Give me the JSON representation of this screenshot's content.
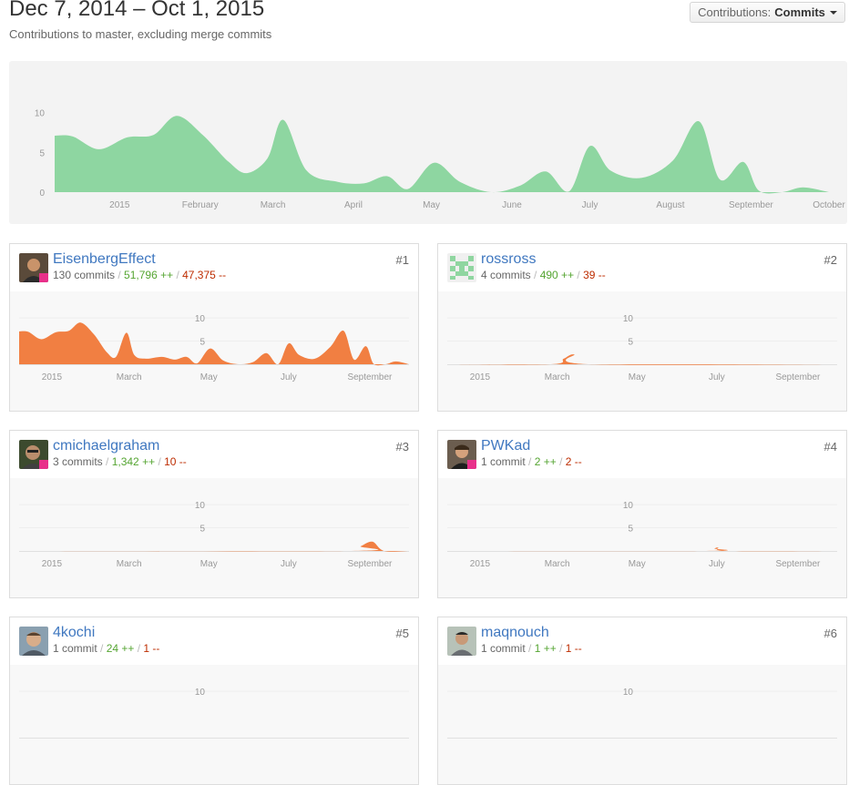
{
  "header": {
    "date_range": "Dec 7, 2014 – Oct 1, 2015",
    "subtitle": "Contributions to master, excluding merge commits",
    "contributions_label": "Contributions:",
    "contributions_value": "Commits"
  },
  "colors": {
    "main_fill": "#8ed6a1",
    "contributor_fill": "#f17f42",
    "link": "#4078c0",
    "additions": "#55a532",
    "deletions": "#bd2c00"
  },
  "chart_data": [
    {
      "type": "area",
      "x_start": "2014-12-07",
      "x_end": "2015-10-01",
      "x": [
        "2014-12-07",
        "2014-12-14",
        "2014-12-24",
        "2015-01-04",
        "2015-01-14",
        "2015-01-23",
        "2015-02-02",
        "2015-02-12",
        "2015-02-19",
        "2015-02-27",
        "2015-03-05",
        "2015-03-14",
        "2015-03-26",
        "2015-04-05",
        "2015-04-14",
        "2015-04-22",
        "2015-05-02",
        "2015-05-12",
        "2015-05-24",
        "2015-06-04",
        "2015-06-14",
        "2015-06-23",
        "2015-07-01",
        "2015-07-09",
        "2015-07-21",
        "2015-08-02",
        "2015-08-12",
        "2015-08-20",
        "2015-08-29",
        "2015-09-04",
        "2015-09-13",
        "2015-09-21",
        "2015-10-01"
      ],
      "values": [
        7.1,
        7.0,
        5.4,
        6.9,
        7.2,
        9.6,
        7.2,
        3.8,
        2.4,
        4.3,
        9.1,
        2.7,
        1.3,
        1.1,
        2.0,
        0.4,
        3.7,
        1.3,
        0.0,
        0.8,
        2.6,
        0.1,
        5.8,
        2.7,
        1.8,
        4.0,
        8.9,
        1.6,
        3.8,
        0.2,
        0.0,
        0.6,
        0.0
      ],
      "x_tick_labels": [
        "2015",
        "February",
        "March",
        "April",
        "May",
        "June",
        "July",
        "August",
        "September",
        "October"
      ],
      "y_ticks": [
        0,
        5,
        10
      ],
      "ylim": [
        0,
        11
      ]
    },
    {
      "type": "area",
      "x_start": "2014-12-07",
      "x_end": "2015-10-01",
      "x": [
        "2014-12-07",
        "2014-12-14",
        "2014-12-24",
        "2015-01-04",
        "2015-01-14",
        "2015-01-23",
        "2015-02-02",
        "2015-02-12",
        "2015-02-19",
        "2015-02-27",
        "2015-03-05",
        "2015-03-14",
        "2015-03-26",
        "2015-04-05",
        "2015-04-14",
        "2015-04-22",
        "2015-05-02",
        "2015-05-12",
        "2015-05-24",
        "2015-06-04",
        "2015-06-14",
        "2015-06-23",
        "2015-07-01",
        "2015-07-09",
        "2015-07-21",
        "2015-08-02",
        "2015-08-12",
        "2015-08-20",
        "2015-08-29",
        "2015-09-04",
        "2015-09-13",
        "2015-09-21",
        "2015-10-01"
      ],
      "values": [
        7.1,
        7.0,
        5.4,
        6.9,
        7.2,
        9.0,
        6.5,
        2.6,
        1.6,
        6.8,
        2.0,
        1.2,
        1.6,
        1.0,
        1.6,
        0.2,
        3.4,
        0.8,
        0.0,
        0.5,
        2.4,
        0.0,
        4.5,
        2.0,
        1.2,
        3.8,
        7.2,
        1.0,
        3.9,
        0.1,
        0.0,
        0.6,
        0.0
      ],
      "x_tick_labels": [
        "2015",
        "March",
        "May",
        "July",
        "September"
      ],
      "y_ticks": [
        5,
        10
      ],
      "ylim": [
        0,
        11
      ]
    },
    {
      "type": "area",
      "x_start": "2014-12-07",
      "x_end": "2015-10-01",
      "x": [
        "2014-12-07",
        "2015-02-24",
        "2015-03-06",
        "2015-03-14",
        "2015-03-25",
        "2015-10-01"
      ],
      "values": [
        0,
        0,
        1.2,
        2.1,
        0,
        0
      ],
      "x_tick_labels": [
        "2015",
        "March",
        "May",
        "July",
        "September"
      ],
      "y_ticks": [
        5,
        10
      ],
      "ylim": [
        0,
        11
      ]
    },
    {
      "type": "area",
      "x_start": "2014-12-07",
      "x_end": "2015-10-01",
      "x": [
        "2014-12-07",
        "2015-08-18",
        "2015-08-25",
        "2015-09-03",
        "2015-09-12",
        "2015-10-01"
      ],
      "values": [
        0,
        0,
        1.0,
        2.0,
        0,
        0
      ],
      "x_tick_labels": [
        "2015",
        "March",
        "May",
        "July",
        "September"
      ],
      "y_ticks": [
        5,
        10
      ],
      "ylim": [
        0,
        11
      ]
    },
    {
      "type": "area",
      "x_start": "2014-12-07",
      "x_end": "2015-10-01",
      "x": [
        "2014-12-07",
        "2015-06-23",
        "2015-06-29",
        "2015-07-02",
        "2015-07-10",
        "2015-10-01"
      ],
      "values": [
        0,
        0,
        0.5,
        0.7,
        0,
        0
      ],
      "x_tick_labels": [
        "2015",
        "March",
        "May",
        "July",
        "September"
      ],
      "y_ticks": [
        5,
        10
      ],
      "ylim": [
        0,
        11
      ]
    },
    {
      "type": "area",
      "x_start": "2014-12-07",
      "x_end": "2015-10-01",
      "x": [],
      "values": [],
      "x_tick_labels": [],
      "y_ticks": [
        10
      ],
      "ylim": [
        0,
        11
      ]
    },
    {
      "type": "area",
      "x_start": "2014-12-07",
      "x_end": "2015-10-01",
      "x": [],
      "values": [],
      "x_tick_labels": [],
      "y_ticks": [
        10
      ],
      "ylim": [
        0,
        11
      ]
    }
  ],
  "contributors": [
    {
      "name": "EisenbergEffect",
      "commits": "130 commits",
      "additions": "51,796 ++",
      "deletions": "47,375 --",
      "rank": "#1",
      "avatar_icon": "person-photo-icon"
    },
    {
      "name": "rossross",
      "commits": "4 commits",
      "additions": "490 ++",
      "deletions": "39 --",
      "rank": "#2",
      "avatar_icon": "identicon-icon"
    },
    {
      "name": "cmichaelgraham",
      "commits": "3 commits",
      "additions": "1,342 ++",
      "deletions": "10 --",
      "rank": "#3",
      "avatar_icon": "person-photo-icon"
    },
    {
      "name": "PWKad",
      "commits": "1 commit",
      "additions": "2 ++",
      "deletions": "2 --",
      "rank": "#4",
      "avatar_icon": "person-photo-icon"
    },
    {
      "name": "4kochi",
      "commits": "1 commit",
      "additions": "24 ++",
      "deletions": "1 --",
      "rank": "#5",
      "avatar_icon": "person-photo-icon"
    },
    {
      "name": "maqnouch",
      "commits": "1 commit",
      "additions": "1 ++",
      "deletions": "1 --",
      "rank": "#6",
      "avatar_icon": "person-photo-icon"
    }
  ]
}
